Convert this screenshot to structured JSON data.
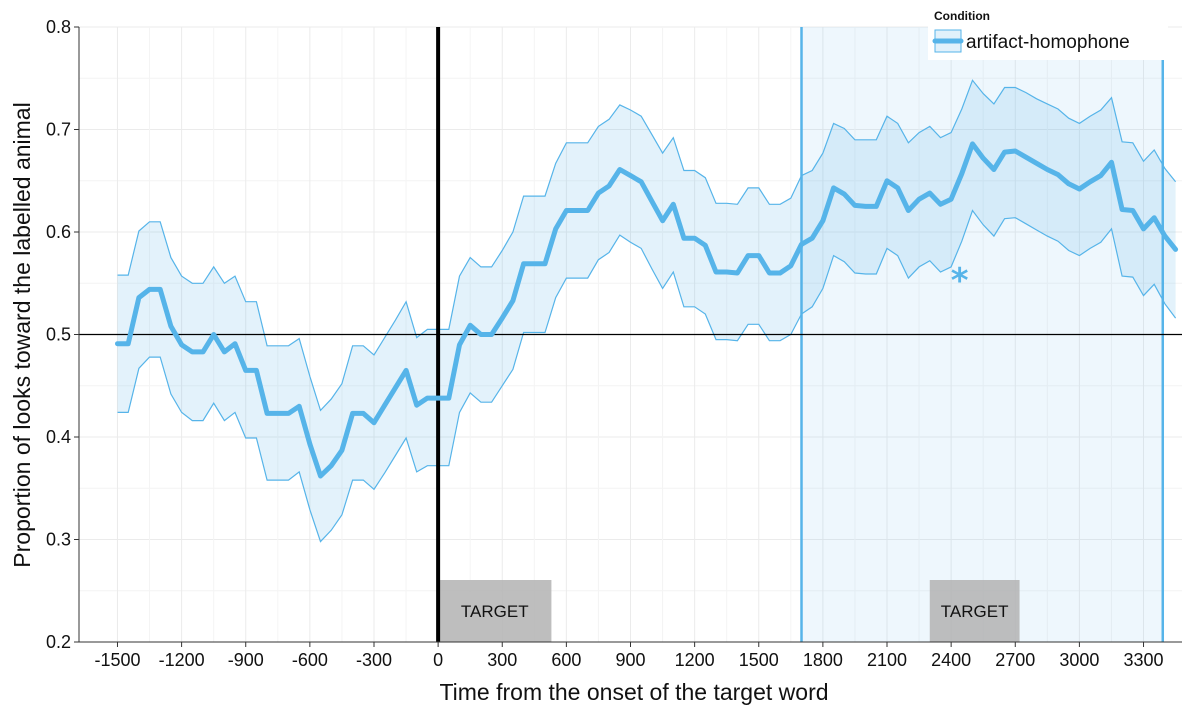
{
  "chart_data": {
    "type": "line",
    "title": "",
    "xlabel": "Time from the onset of the target word",
    "ylabel": "Proportion of looks toward the labelled animal",
    "xlim": [
      -1680,
      3480
    ],
    "ylim": [
      0.2,
      0.8
    ],
    "x_ticks": [
      -1500,
      -1200,
      -900,
      -600,
      -300,
      0,
      300,
      600,
      900,
      1200,
      1500,
      1800,
      2100,
      2400,
      2700,
      3000,
      3300
    ],
    "x_tick_labels": [
      "-1500",
      "-1200",
      "-900",
      "-600",
      "-300",
      "0",
      "300",
      "600",
      "900",
      "1200",
      "1500",
      "1800",
      "2100",
      "2400",
      "2700",
      "3000",
      "3300"
    ],
    "y_ticks": [
      0.2,
      0.3,
      0.4,
      0.5,
      0.6,
      0.7,
      0.8
    ],
    "y_tick_labels": [
      "0.2",
      "0.3",
      "0.4",
      "0.5",
      "0.6",
      "0.7",
      "0.8"
    ],
    "grid": true,
    "hline": 0.5,
    "onset_line_x": 0,
    "significant_window": [
      1700,
      3390
    ],
    "significance_marker": {
      "x": 2440,
      "y": 0.565,
      "label": "*"
    },
    "target_boxes": [
      {
        "x0": 0,
        "x1": 530,
        "label": "TARGET"
      },
      {
        "x0": 2300,
        "x1": 2720,
        "label": "TARGET"
      }
    ],
    "legend": {
      "title": "Condition",
      "position": "top-right"
    },
    "colors": {
      "series": "#56B4E9",
      "ribbon": "#56B4E9",
      "window_fill": "#56B4E9",
      "target_box": "#b3b3b3",
      "grid": "#ebebeb",
      "reference_line": "#000000"
    },
    "series": [
      {
        "name": "artifact-homophone",
        "x": [
          -1500,
          -1450,
          -1400,
          -1350,
          -1300,
          -1250,
          -1200,
          -1150,
          -1100,
          -1050,
          -1000,
          -950,
          -900,
          -850,
          -800,
          -750,
          -700,
          -650,
          -600,
          -550,
          -500,
          -450,
          -400,
          -350,
          -300,
          -250,
          -200,
          -150,
          -100,
          -50,
          0,
          50,
          100,
          150,
          200,
          250,
          300,
          350,
          400,
          450,
          500,
          550,
          600,
          650,
          700,
          750,
          800,
          850,
          900,
          950,
          1000,
          1050,
          1100,
          1150,
          1200,
          1250,
          1300,
          1350,
          1400,
          1450,
          1500,
          1550,
          1600,
          1650,
          1700,
          1750,
          1800,
          1850,
          1900,
          1950,
          2000,
          2050,
          2100,
          2150,
          2200,
          2250,
          2300,
          2350,
          2400,
          2450,
          2500,
          2550,
          2600,
          2650,
          2700,
          2750,
          2800,
          2850,
          2900,
          2950,
          3000,
          3050,
          3100,
          3150,
          3200,
          3250,
          3300,
          3350,
          3400,
          3450
        ],
        "values": [
          0.491,
          0.491,
          0.536,
          0.544,
          0.544,
          0.508,
          0.49,
          0.483,
          0.483,
          0.5,
          0.483,
          0.491,
          0.465,
          0.465,
          0.423,
          0.423,
          0.423,
          0.43,
          0.393,
          0.362,
          0.372,
          0.387,
          0.423,
          0.423,
          0.414,
          0.431,
          0.448,
          0.465,
          0.431,
          0.438,
          0.438,
          0.438,
          0.49,
          0.509,
          0.5,
          0.5,
          0.516,
          0.533,
          0.569,
          0.569,
          0.569,
          0.603,
          0.621,
          0.621,
          0.621,
          0.638,
          0.645,
          0.661,
          0.655,
          0.649,
          0.63,
          0.611,
          0.627,
          0.594,
          0.594,
          0.587,
          0.561,
          0.561,
          0.56,
          0.577,
          0.577,
          0.56,
          0.56,
          0.567,
          0.588,
          0.594,
          0.611,
          0.643,
          0.637,
          0.626,
          0.625,
          0.625,
          0.65,
          0.643,
          0.621,
          0.632,
          0.638,
          0.627,
          0.632,
          0.657,
          0.686,
          0.672,
          0.661,
          0.678,
          0.679,
          0.673,
          0.667,
          0.661,
          0.656,
          0.647,
          0.642,
          0.649,
          0.655,
          0.668,
          0.622,
          0.621,
          0.603,
          0.614,
          0.596,
          0.583
        ],
        "lower": [
          0.424,
          0.424,
          0.467,
          0.478,
          0.478,
          0.442,
          0.424,
          0.416,
          0.416,
          0.433,
          0.416,
          0.424,
          0.399,
          0.399,
          0.358,
          0.358,
          0.358,
          0.366,
          0.329,
          0.298,
          0.309,
          0.324,
          0.358,
          0.358,
          0.349,
          0.365,
          0.382,
          0.399,
          0.366,
          0.372,
          0.372,
          0.372,
          0.424,
          0.443,
          0.434,
          0.434,
          0.45,
          0.466,
          0.502,
          0.502,
          0.502,
          0.536,
          0.555,
          0.555,
          0.555,
          0.573,
          0.58,
          0.597,
          0.59,
          0.584,
          0.564,
          0.545,
          0.561,
          0.527,
          0.527,
          0.52,
          0.495,
          0.495,
          0.494,
          0.51,
          0.51,
          0.494,
          0.494,
          0.5,
          0.52,
          0.527,
          0.545,
          0.577,
          0.571,
          0.56,
          0.559,
          0.559,
          0.584,
          0.577,
          0.555,
          0.566,
          0.572,
          0.561,
          0.566,
          0.591,
          0.621,
          0.607,
          0.596,
          0.613,
          0.614,
          0.608,
          0.602,
          0.596,
          0.591,
          0.582,
          0.577,
          0.584,
          0.59,
          0.603,
          0.557,
          0.556,
          0.538,
          0.549,
          0.53,
          0.516
        ],
        "upper": [
          0.558,
          0.558,
          0.601,
          0.61,
          0.61,
          0.575,
          0.557,
          0.55,
          0.55,
          0.566,
          0.55,
          0.557,
          0.532,
          0.532,
          0.489,
          0.489,
          0.489,
          0.496,
          0.459,
          0.426,
          0.437,
          0.452,
          0.489,
          0.489,
          0.48,
          0.497,
          0.514,
          0.532,
          0.497,
          0.505,
          0.505,
          0.505,
          0.557,
          0.575,
          0.566,
          0.566,
          0.582,
          0.6,
          0.635,
          0.635,
          0.635,
          0.667,
          0.687,
          0.687,
          0.687,
          0.703,
          0.71,
          0.724,
          0.719,
          0.713,
          0.695,
          0.677,
          0.692,
          0.66,
          0.66,
          0.653,
          0.628,
          0.628,
          0.627,
          0.643,
          0.643,
          0.627,
          0.627,
          0.633,
          0.655,
          0.66,
          0.677,
          0.706,
          0.701,
          0.69,
          0.69,
          0.69,
          0.713,
          0.706,
          0.687,
          0.697,
          0.703,
          0.692,
          0.697,
          0.72,
          0.748,
          0.735,
          0.725,
          0.741,
          0.741,
          0.736,
          0.73,
          0.725,
          0.72,
          0.711,
          0.706,
          0.713,
          0.719,
          0.731,
          0.688,
          0.687,
          0.669,
          0.68,
          0.662,
          0.649
        ]
      }
    ]
  }
}
